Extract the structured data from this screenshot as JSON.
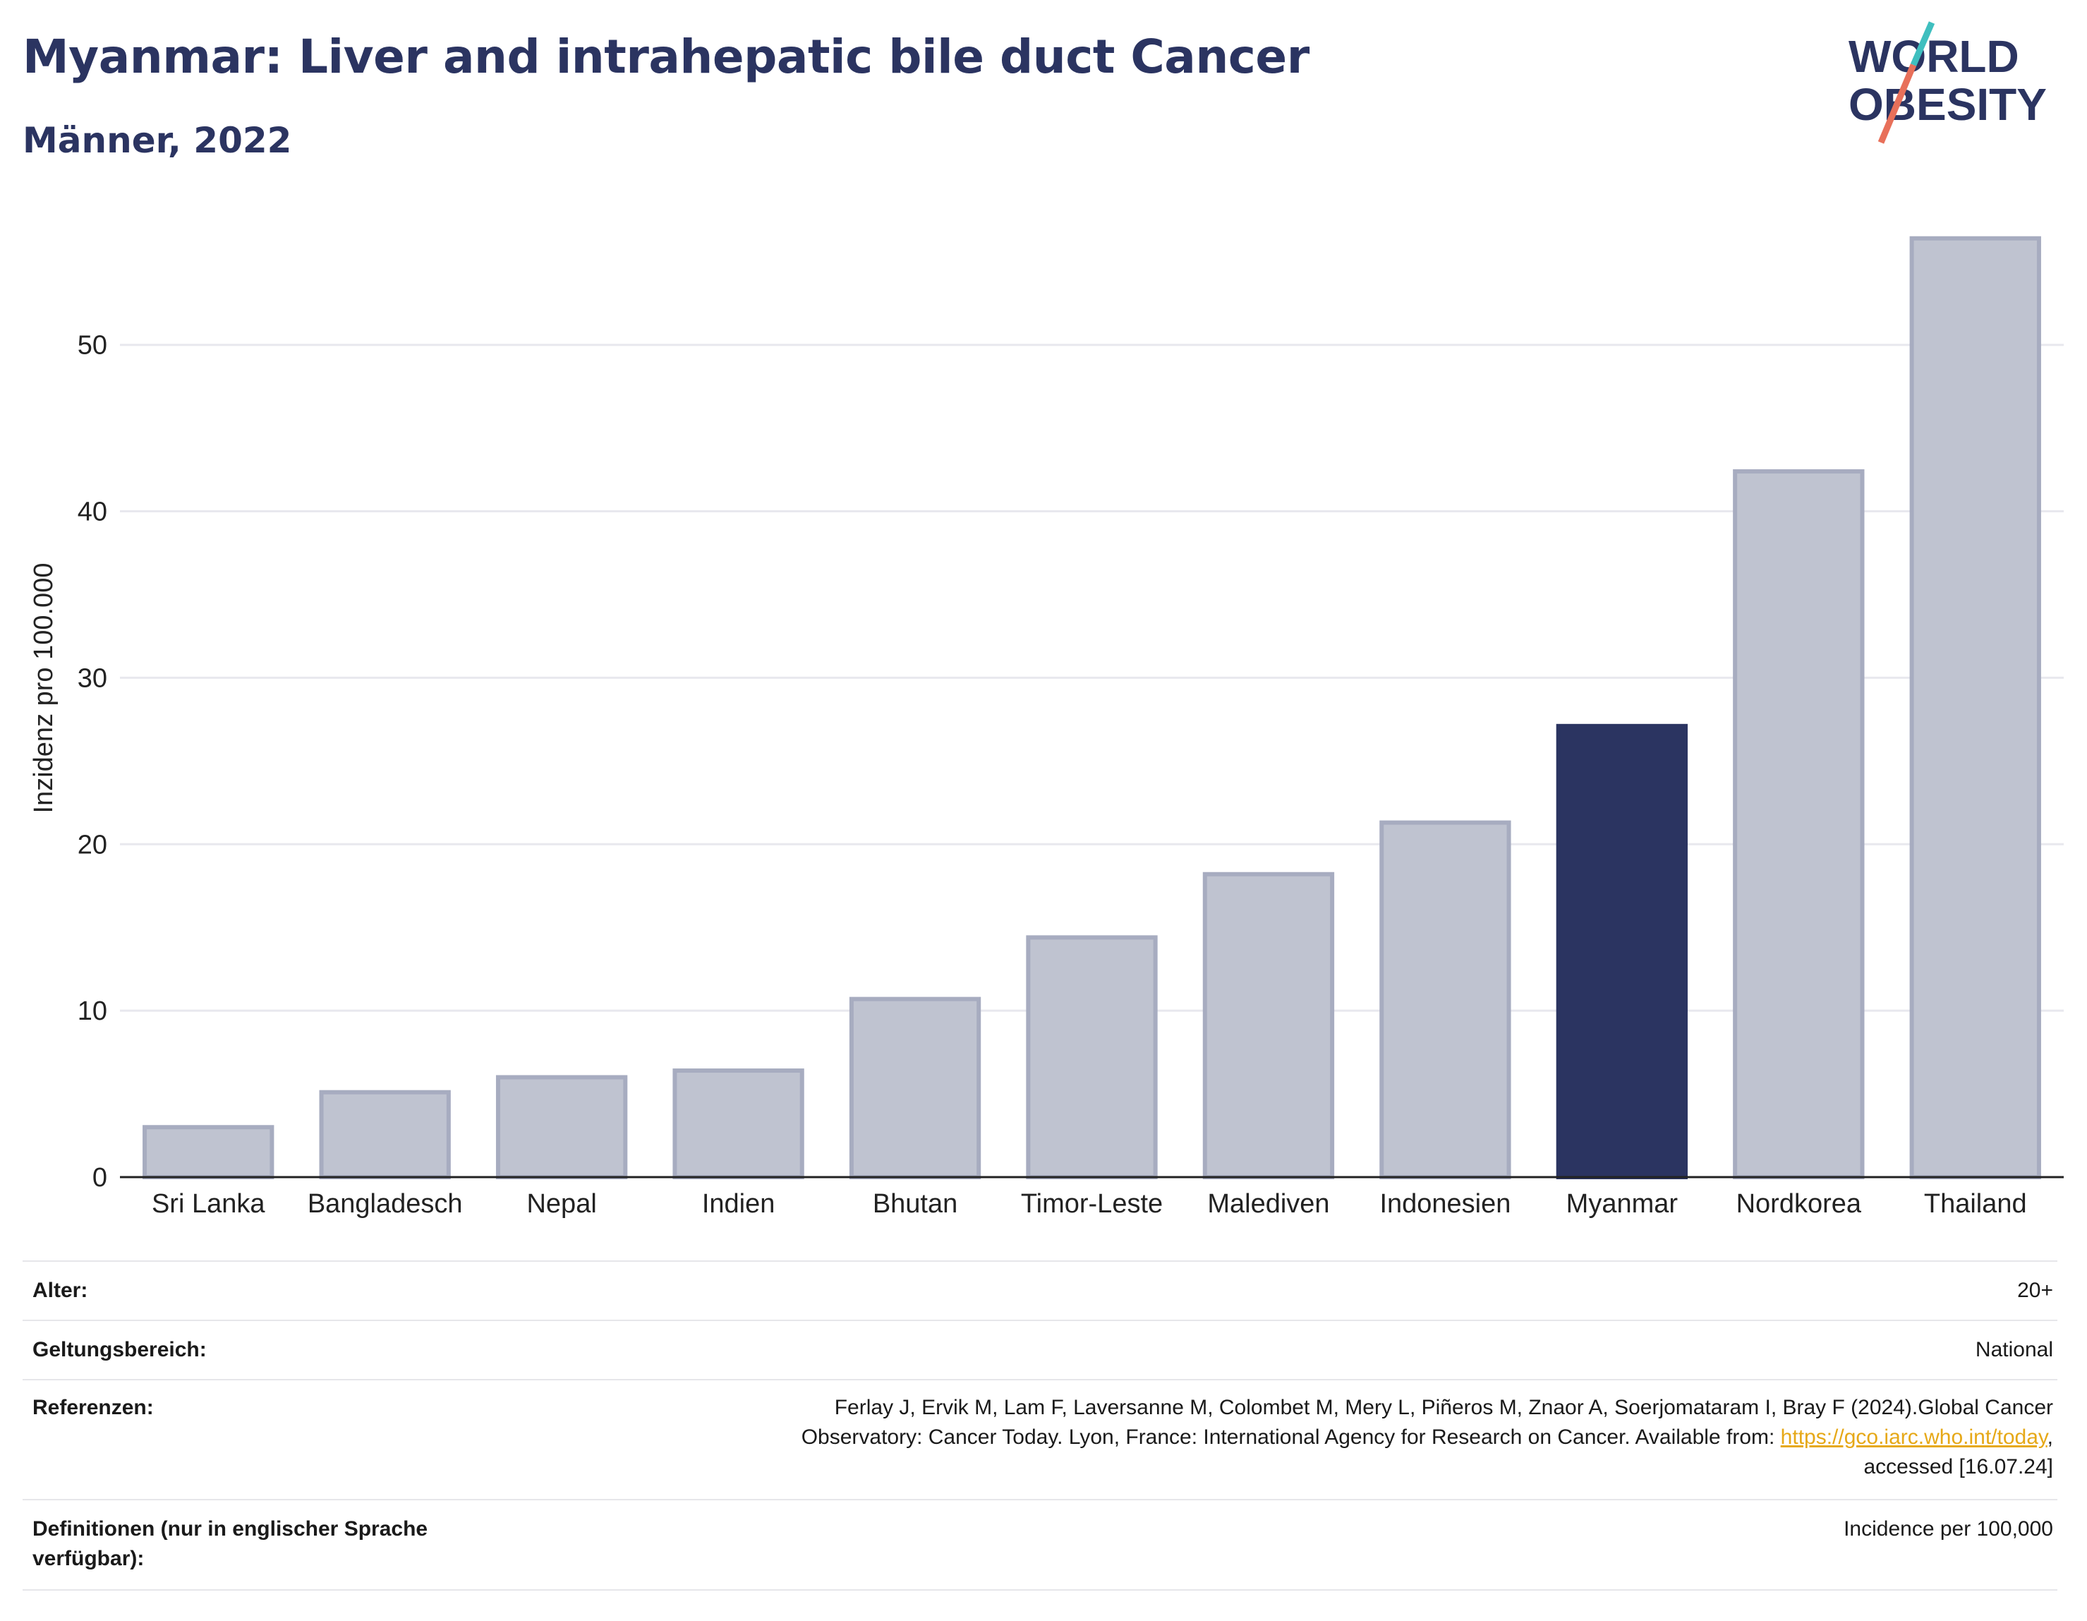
{
  "header": {
    "title": "Myanmar: Liver and intrahepatic bile duct Cancer",
    "subtitle": "Männer, 2022"
  },
  "logo": {
    "line1": "WORLD",
    "line2": "OBESITY",
    "colors": {
      "text": "#2b3461",
      "slash_top": "#3fbfbf",
      "slash_bottom": "#e8705a"
    }
  },
  "colors": {
    "highlight": "#2b3461",
    "bar": "#bfc3d0",
    "bar_border": "#a7acc0",
    "grid": "#e8e8ee",
    "axis": "#222222"
  },
  "chart_data": {
    "type": "bar",
    "title": "Myanmar: Liver and intrahepatic bile duct Cancer",
    "subtitle": "Männer, 2022",
    "xlabel": "",
    "ylabel": "Inzidenz pro 100.000",
    "categories": [
      "Sri Lanka",
      "Bangladesch",
      "Nepal",
      "Indien",
      "Bhutan",
      "Timor-Leste",
      "Malediven",
      "Indonesien",
      "Myanmar",
      "Nordkorea",
      "Thailand"
    ],
    "values": [
      3.0,
      5.1,
      6.0,
      6.4,
      10.7,
      14.4,
      18.2,
      21.3,
      27.1,
      42.4,
      56.4
    ],
    "highlight": "Myanmar",
    "ylim": [
      0,
      58
    ],
    "yticks": [
      0,
      10,
      20,
      30,
      40,
      50
    ],
    "grid": true,
    "legend": "none"
  },
  "meta": {
    "alter_label": "Alter:",
    "alter_value": "20+",
    "geltung_label": "Geltungsbereich:",
    "geltung_value": "National",
    "ref_label": "Referenzen:",
    "ref_line1": "Ferlay J, Ervik M, Lam F, Laversanne M, Colombet M, Mery L, Piñeros M, Znaor A, Soerjomataram I, Bray F (2024).Global Cancer",
    "ref_line2": "Observatory: Cancer Today. Lyon, France: International Agency for Research on Cancer. Available from: ",
    "ref_link": "https://gco.iarc.who.int/today",
    "ref_line2_end": ",",
    "ref_line3": "accessed [16.07.24]",
    "def_label": "Definitionen (nur in englischer Sprache verfügbar):",
    "def_value": "Incidence per 100,000"
  }
}
